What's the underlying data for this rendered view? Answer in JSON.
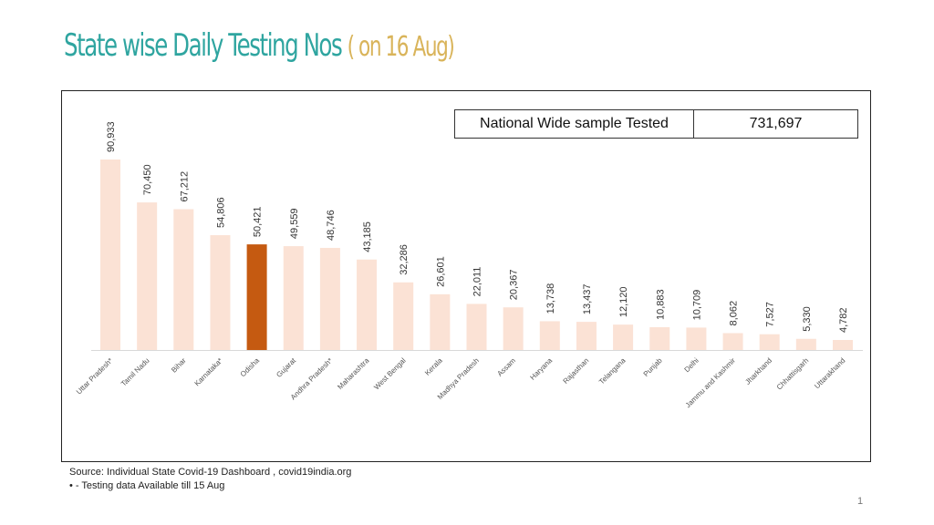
{
  "title": {
    "main": "State wise Daily Testing Nos",
    "sub": "( on 16 Aug)"
  },
  "national": {
    "label": "National Wide sample Tested",
    "value": "731,697"
  },
  "footer": {
    "source": "Source: Individual State Covid-19 Dashboard , covid19india.org",
    "note": "•   - Testing data Available till 15 Aug",
    "page": "1"
  },
  "colors": {
    "bar": "#fbe2d5",
    "highlight": "#c55a11",
    "title": "#2fa5a0",
    "subtitle": "#d9b45a"
  },
  "chart_data": {
    "type": "bar",
    "title": "State wise Daily Testing Nos ( on 16 Aug)",
    "categories": [
      "Uttar Pradesh*",
      "Tamil Nadu",
      "Bihar",
      "Karnataka*",
      "Odisha",
      "Gujarat",
      "Andhra Pradesh*",
      "Maharashtra",
      "West Bengal",
      "Kerala",
      "Madhya Pradesh",
      "Assam",
      "Haryana",
      "Rajasthan",
      "Telangana",
      "Punjab",
      "Delhi",
      "Jammu and Kashmir",
      "Jharkhand",
      "Chhattisgarh",
      "Uttarakhand"
    ],
    "values": [
      90933,
      70450,
      67212,
      54806,
      50421,
      49559,
      48746,
      43185,
      32286,
      26601,
      22011,
      20367,
      13738,
      13437,
      12120,
      10883,
      10709,
      8062,
      7527,
      5330,
      4782
    ],
    "labels": [
      "90,933",
      "70,450",
      "67,212",
      "54,806",
      "50,421",
      "49,559",
      "48,746",
      "43,185",
      "32,286",
      "26,601",
      "22,011",
      "20,367",
      "13,738",
      "13,437",
      "12,120",
      "10,883",
      "10,709",
      "8,062",
      "7,527",
      "5,330",
      "4,782"
    ],
    "highlight": "Odisha",
    "xlabel": "",
    "ylabel": "",
    "ylim": [
      0,
      100000
    ],
    "grid": false,
    "legend": "none"
  }
}
